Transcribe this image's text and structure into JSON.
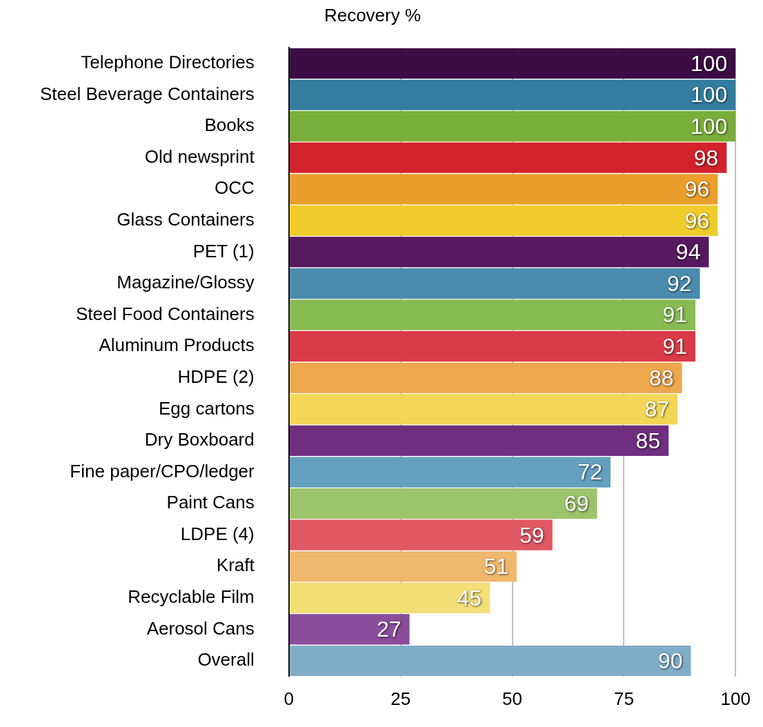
{
  "chart_data": {
    "type": "bar",
    "orientation": "horizontal",
    "xlabel": "Recovery %",
    "categories": [
      "Telephone Directories",
      "Steel Beverage Containers",
      "Books",
      "Old newsprint",
      "OCC",
      "Glass Containers",
      "PET (1)",
      "Magazine/Glossy",
      "Steel Food Containers",
      "Aluminum Products",
      "HDPE (2)",
      "Egg cartons",
      "Dry Boxboard",
      "Fine paper/CPO/ledger",
      "Paint Cans",
      "LDPE (4)",
      "Kraft",
      "Recyclable Film",
      "Aerosol Cans",
      "Overall"
    ],
    "values": [
      100,
      100,
      100,
      98,
      96,
      96,
      94,
      92,
      91,
      91,
      88,
      87,
      85,
      72,
      69,
      59,
      51,
      45,
      27,
      90
    ],
    "colors": [
      "#3c0d45",
      "#337d9f",
      "#7aae3a",
      "#d3222b",
      "#eb9e2b",
      "#efcc2b",
      "#56185f",
      "#4a8bae",
      "#89bb55",
      "#d93b47",
      "#eda84e",
      "#f3d657",
      "#6f2e7f",
      "#649fbf",
      "#9cc46c",
      "#e05864",
      "#f0b86c",
      "#f4de76",
      "#8a4d9b",
      "#7fadc8"
    ],
    "xlim": [
      0,
      100
    ],
    "xticks": [
      0,
      25,
      50,
      75,
      100
    ],
    "grid": "x",
    "data_labels": true,
    "legend": false
  }
}
